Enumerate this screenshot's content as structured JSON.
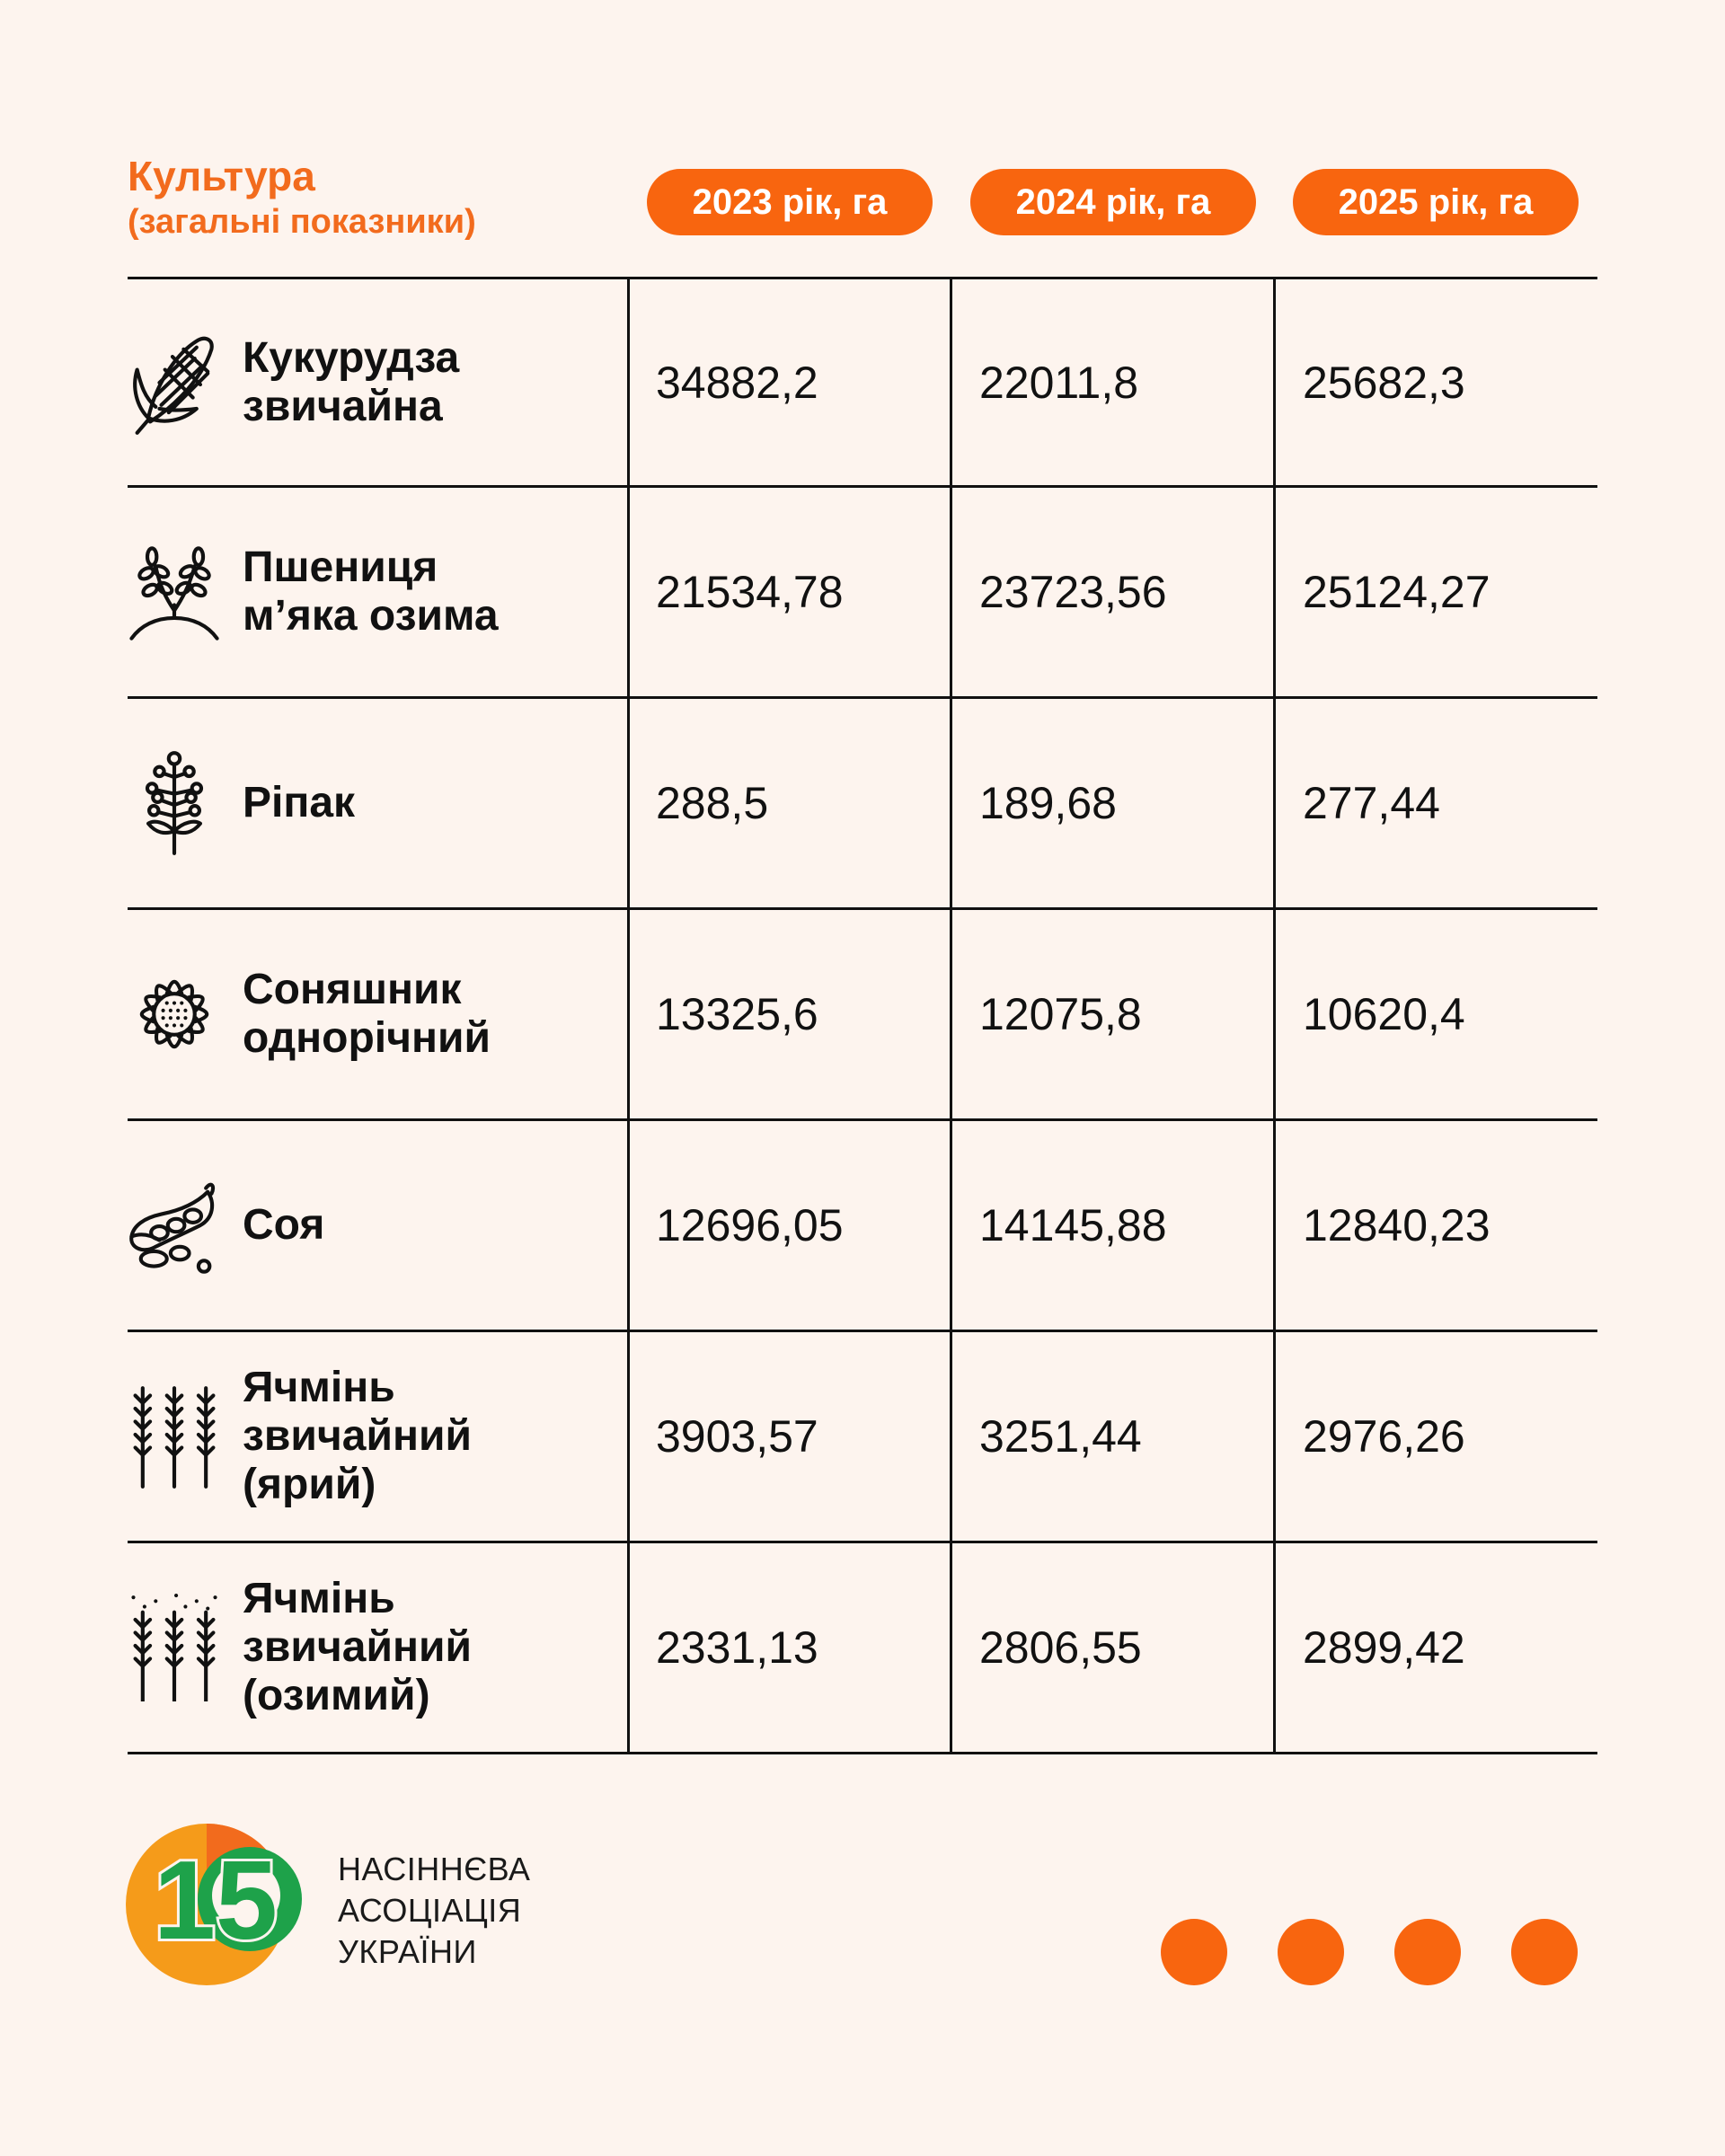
{
  "header": {
    "title": "Культура",
    "subtitle": "(загальні показники)",
    "years": [
      "2023 рік, га",
      "2024 рік, га",
      "2025 рік, га"
    ]
  },
  "rows": [
    {
      "crop": "Кукурудза\nзвичайна",
      "icon": "corn-icon",
      "values": [
        "34882,2",
        "22011,8",
        "25682,3"
      ]
    },
    {
      "crop": "Пшениця\nм’яка озима",
      "icon": "wheat-icon",
      "values": [
        "21534,78",
        "23723,56",
        "25124,27"
      ]
    },
    {
      "crop": "Ріпак",
      "icon": "rapeseed-icon",
      "values": [
        "288,5",
        "189,68",
        "277,44"
      ]
    },
    {
      "crop": "Соняшник\nоднорічний",
      "icon": "sunflower-icon",
      "values": [
        "13325,6",
        "12075,8",
        "10620,4"
      ]
    },
    {
      "crop": "Соя",
      "icon": "soy-icon",
      "values": [
        "12696,05",
        "14145,88",
        "12840,23"
      ]
    },
    {
      "crop": "Ячмінь\nзвичайний\n(ярий)",
      "icon": "barley-icon",
      "values": [
        "3903,57",
        "3251,44",
        "2976,26"
      ]
    },
    {
      "crop": "Ячмінь\nзвичайний\n(озимий)",
      "icon": "winter-barley-icon",
      "values": [
        "2331,13",
        "2806,55",
        "2899,42"
      ]
    }
  ],
  "logo": {
    "number": "15",
    "text": "НАСІННЄВА\nАСОЦІАЦІЯ\nУКРАЇНИ"
  },
  "colors": {
    "accent": "#f8650f",
    "background": "#fdf4ee",
    "logo_green": "#1ea24a",
    "logo_orange": "#f59b1a"
  }
}
